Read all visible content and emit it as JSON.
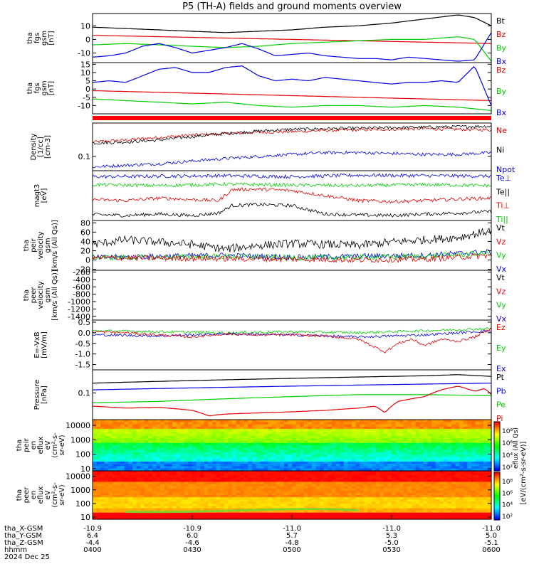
{
  "title": "P5 (TH-A) fields and ground moments overview",
  "colors": {
    "black": "#000000",
    "red": "#e00000",
    "green": "#00cc00",
    "blue": "#0000e0"
  },
  "chart_data": [
    {
      "type": "line",
      "ylabel": [
        "tha",
        "fgs",
        "gsm",
        "[nT]"
      ],
      "yticks": [
        "10",
        "0",
        "-10"
      ],
      "ylim": [
        -17,
        19
      ],
      "legend": [
        "Bt",
        "Bz",
        "By",
        "Bx"
      ],
      "series": [
        {
          "name": "Bt",
          "color": "black",
          "x": [
            0,
            10,
            20,
            30,
            40,
            50,
            60,
            70,
            80,
            90,
            100,
            110,
            115,
            120
          ],
          "values": [
            9,
            8,
            7,
            6,
            5,
            6,
            7,
            9,
            10,
            12,
            15,
            18,
            16,
            10
          ]
        },
        {
          "name": "Bz",
          "color": "red",
          "x": [
            0,
            20,
            40,
            60,
            80,
            100,
            120
          ],
          "values": [
            3,
            2,
            1,
            0,
            -1,
            -2,
            -3
          ]
        },
        {
          "name": "By",
          "color": "green",
          "x": [
            0,
            10,
            20,
            30,
            40,
            50,
            60,
            70,
            80,
            90,
            100,
            105,
            110,
            115,
            120
          ],
          "values": [
            -4,
            -3,
            -4,
            -5,
            -6,
            -5,
            -3,
            -2,
            -1,
            0,
            0,
            1,
            2,
            0,
            -16
          ]
        },
        {
          "name": "Bx",
          "color": "blue",
          "x": [
            0,
            5,
            10,
            15,
            20,
            25,
            30,
            35,
            40,
            45,
            50,
            55,
            60,
            65,
            70,
            75,
            80,
            85,
            90,
            95,
            100,
            105,
            110,
            115,
            120
          ],
          "values": [
            -13,
            -12,
            -10,
            -5,
            -3,
            -6,
            -10,
            -8,
            -6,
            -3,
            -7,
            -12,
            -11,
            -10,
            -12,
            -13,
            -14,
            -14,
            -15,
            -13,
            -14,
            -15,
            -16,
            -15,
            5
          ]
        }
      ]
    },
    {
      "type": "line",
      "ylabel": [
        "tha",
        "fgs",
        "gsm",
        "[nT]"
      ],
      "yticks": [
        "15",
        "10",
        "5",
        "0",
        "-5",
        "-10"
      ],
      "ylim": [
        -15,
        16
      ],
      "legend": [
        "Bz",
        "By",
        "Bx"
      ],
      "series": [
        {
          "name": "Bz",
          "color": "red",
          "x": [
            0,
            20,
            40,
            60,
            80,
            100,
            120
          ],
          "values": [
            -1,
            -2,
            -3,
            -4,
            -5,
            -6,
            -7
          ]
        },
        {
          "name": "By",
          "color": "green",
          "x": [
            0,
            10,
            20,
            30,
            40,
            50,
            60,
            70,
            80,
            90,
            100,
            110,
            120
          ],
          "values": [
            -6,
            -7,
            -8,
            -9,
            -8,
            -10,
            -11,
            -10,
            -10,
            -11,
            -10,
            -11,
            -13
          ]
        },
        {
          "name": "Bx",
          "color": "blue",
          "x": [
            0,
            5,
            10,
            15,
            20,
            25,
            30,
            35,
            40,
            45,
            50,
            55,
            60,
            65,
            70,
            75,
            80,
            85,
            90,
            95,
            100,
            105,
            110,
            115,
            120
          ],
          "values": [
            4,
            5,
            4,
            8,
            12,
            13,
            10,
            10,
            13,
            14,
            8,
            5,
            6,
            5,
            7,
            6,
            5,
            4,
            3,
            4,
            4,
            5,
            4,
            14,
            -10
          ]
        }
      ]
    },
    {
      "type": "line",
      "ylabel": [
        "Density",
        "[1/cc]",
        "[cm-3]"
      ],
      "ylog": true,
      "yticks": [
        "0.1"
      ],
      "ylim": [
        0.05,
        0.5
      ],
      "legend": [
        "Ne",
        "Ni",
        "Npot"
      ],
      "series": [
        {
          "name": "Ne",
          "color": "red",
          "x": [
            0,
            10,
            20,
            30,
            40,
            50,
            60,
            70,
            80,
            90,
            100,
            110,
            120
          ],
          "values": [
            0.2,
            0.22,
            0.25,
            0.28,
            0.3,
            0.32,
            0.33,
            0.35,
            0.36,
            0.37,
            0.38,
            0.37,
            0.36
          ]
        },
        {
          "name": "Ni",
          "color": "black",
          "x": [
            0,
            10,
            20,
            30,
            40,
            50,
            60,
            70,
            80,
            90,
            100,
            110,
            120
          ],
          "values": [
            0.19,
            0.2,
            0.22,
            0.26,
            0.3,
            0.34,
            0.37,
            0.38,
            0.39,
            0.4,
            0.41,
            0.42,
            0.43
          ]
        },
        {
          "name": "Npot",
          "color": "blue",
          "x": [
            0,
            10,
            20,
            30,
            40,
            50,
            60,
            70,
            80,
            90,
            100,
            110,
            120
          ],
          "values": [
            0.06,
            0.065,
            0.07,
            0.08,
            0.09,
            0.1,
            0.11,
            0.12,
            0.12,
            0.115,
            0.11,
            0.11,
            0.12
          ]
        }
      ]
    },
    {
      "type": "line",
      "ylabel": [
        "magt3",
        "[eV]"
      ],
      "yticks": [],
      "ylim": [
        0,
        10
      ],
      "legend": [
        "Te⊥",
        "Te||",
        "Ti⊥",
        "Ti||"
      ],
      "series": [
        {
          "name": "Te⊥",
          "color": "blue",
          "x": [
            0,
            20,
            40,
            60,
            80,
            100,
            120
          ],
          "values": [
            8.8,
            8.9,
            9.0,
            8.8,
            9.1,
            9.0,
            8.9
          ]
        },
        {
          "name": "Te||",
          "color": "black",
          "x": [
            0,
            10,
            20,
            30,
            38,
            42,
            50,
            60,
            70,
            80,
            90,
            100,
            110,
            120
          ],
          "values": [
            1.2,
            1.0,
            1.3,
            1.0,
            1.5,
            3.0,
            3.2,
            3.0,
            1.3,
            1.1,
            1.0,
            1.3,
            1.5,
            1.8
          ]
        },
        {
          "name": "Ti⊥",
          "color": "red",
          "x": [
            0,
            10,
            20,
            30,
            38,
            42,
            50,
            60,
            70,
            80,
            90,
            100,
            110,
            120
          ],
          "values": [
            4.2,
            4.0,
            4.5,
            4.2,
            4.0,
            6.2,
            6.3,
            6.0,
            5.0,
            4.0,
            3.8,
            4.0,
            4.3,
            4.5
          ]
        },
        {
          "name": "Ti||",
          "color": "green",
          "x": [
            0,
            20,
            40,
            60,
            80,
            100,
            120
          ],
          "values": [
            7.2,
            7.0,
            7.3,
            7.1,
            7.0,
            7.2,
            7.0
          ]
        }
      ]
    },
    {
      "type": "line",
      "ylabel": [
        "tha",
        "peir",
        "velocity",
        "gsm",
        "[km/s (All Qs)]"
      ],
      "yticks": [
        "80",
        "60",
        "40",
        "20",
        "0",
        "-20"
      ],
      "ylim": [
        -22,
        85
      ],
      "legend": [
        "Vt",
        "Vz",
        "Vy",
        "Vx"
      ],
      "series": [
        {
          "name": "Vt",
          "color": "black",
          "x": [
            0,
            10,
            20,
            30,
            40,
            50,
            60,
            70,
            80,
            90,
            100,
            110,
            120
          ],
          "values": [
            30,
            40,
            35,
            30,
            20,
            28,
            32,
            30,
            28,
            35,
            40,
            45,
            60
          ]
        },
        {
          "name": "Vx",
          "color": "blue",
          "x": [
            0,
            20,
            40,
            60,
            80,
            100,
            120
          ],
          "values": [
            5,
            8,
            10,
            6,
            8,
            10,
            18
          ]
        },
        {
          "name": "Vy",
          "color": "green",
          "x": [
            0,
            20,
            40,
            60,
            80,
            100,
            120
          ],
          "values": [
            5,
            6,
            8,
            5,
            6,
            8,
            15
          ]
        },
        {
          "name": "Vz",
          "color": "red",
          "x": [
            0,
            20,
            40,
            60,
            80,
            100,
            120
          ],
          "values": [
            5,
            4,
            3,
            2,
            0,
            2,
            10
          ]
        }
      ]
    },
    {
      "type": "line",
      "ylabel": [
        "tha",
        "peer",
        "velocity",
        "gsm",
        "[km/s (All Qs)]"
      ],
      "yticks": [
        "-200",
        "-400",
        "-600",
        "-800",
        "-1000",
        "-1200",
        "-1400"
      ],
      "ylim": [
        -1500,
        -150
      ],
      "legend": [
        "Vt",
        "Vz",
        "Vy",
        "Vx"
      ],
      "series": []
    },
    {
      "type": "line",
      "ylabel": [
        "E=-VxB",
        "[mV/m]"
      ],
      "yticks": [
        "0.5",
        "0.0",
        "-0.5",
        "-1.0",
        "-1.5"
      ],
      "ylim": [
        -1.75,
        0.6
      ],
      "legend": [
        "Ez",
        "Ey",
        "Ex"
      ],
      "series": [
        {
          "name": "Ey",
          "color": "green",
          "x": [
            0,
            20,
            40,
            60,
            80,
            100,
            120
          ],
          "values": [
            0.1,
            0.05,
            0.0,
            0.05,
            0.0,
            0.1,
            0.2
          ]
        },
        {
          "name": "Ex",
          "color": "blue",
          "x": [
            0,
            20,
            40,
            60,
            80,
            100,
            120
          ],
          "values": [
            -0.1,
            -0.15,
            -0.05,
            -0.1,
            -0.2,
            -0.1,
            0.1
          ]
        },
        {
          "name": "Ez",
          "color": "red",
          "x": [
            0,
            10,
            20,
            30,
            40,
            50,
            60,
            70,
            80,
            88,
            92,
            96,
            100,
            105,
            110,
            115,
            120
          ],
          "values": [
            0.05,
            0.0,
            -0.1,
            -0.2,
            -0.05,
            -0.1,
            -0.1,
            -0.15,
            -0.3,
            -0.9,
            -0.5,
            -0.3,
            -0.6,
            -0.3,
            -0.4,
            -0.2,
            0.2
          ]
        }
      ]
    },
    {
      "type": "line",
      "ylabel": [
        "Pressure",
        "[nPa]"
      ],
      "ylog": true,
      "yticks": [
        "0.1"
      ],
      "ylim": [
        0.02,
        0.4
      ],
      "legend": [
        "Pt",
        "Pb",
        "Pe",
        "Pi"
      ],
      "series": [
        {
          "name": "Pt",
          "color": "black",
          "x": [
            0,
            20,
            40,
            60,
            80,
            100,
            110,
            120
          ],
          "values": [
            0.18,
            0.2,
            0.22,
            0.24,
            0.26,
            0.28,
            0.3,
            0.27
          ]
        },
        {
          "name": "Pb",
          "color": "blue",
          "x": [
            0,
            20,
            40,
            60,
            80,
            100,
            120
          ],
          "values": [
            0.12,
            0.13,
            0.14,
            0.15,
            0.16,
            0.17,
            0.18
          ]
        },
        {
          "name": "Pe",
          "color": "green",
          "x": [
            0,
            20,
            40,
            60,
            80,
            100,
            120
          ],
          "values": [
            0.055,
            0.06,
            0.07,
            0.08,
            0.09,
            0.09,
            0.085
          ]
        },
        {
          "name": "Pi",
          "color": "red",
          "x": [
            0,
            10,
            20,
            30,
            35,
            40,
            50,
            60,
            70,
            80,
            85,
            88,
            92,
            100,
            105,
            110,
            115,
            118,
            120
          ],
          "values": [
            0.045,
            0.04,
            0.042,
            0.035,
            0.025,
            0.028,
            0.03,
            0.032,
            0.035,
            0.04,
            0.045,
            0.03,
            0.06,
            0.08,
            0.12,
            0.15,
            0.11,
            0.13,
            0.09
          ]
        }
      ]
    },
    {
      "type": "heatmap",
      "ylabel": [
        "tha",
        "peir",
        "en",
        "eflux",
        "eV",
        "(cm²-s-",
        "sr-eV)"
      ],
      "ylog": true,
      "yticks": [
        "10000",
        "1000",
        "100",
        "10"
      ],
      "ylim": [
        7,
        25000
      ]
    },
    {
      "type": "heatmap",
      "ylabel": [
        "tha",
        "peer",
        "en",
        "eflux",
        "eV",
        "(cm²-s-",
        "sr-eV)"
      ],
      "ylog": true,
      "yticks": [
        "10000",
        "1000",
        "100",
        "10"
      ],
      "ylim": [
        7,
        25000
      ]
    }
  ],
  "colorbar": {
    "label": "[eV/(cm²-s-sr-eV)]",
    "label_secondary": "eflux (All Qs)",
    "ticks_top": [
      "10⁸",
      "10⁶",
      "10⁴",
      "10²"
    ],
    "ticks_bottom": [
      "10⁸",
      "10⁶",
      "10⁴",
      "10²"
    ]
  },
  "x_axis": {
    "row_labels": [
      "tha_X-GSM",
      "tha_Y-GSM",
      "tha_Z-GSM",
      "hhmm",
      "2024 Dec 25"
    ],
    "ticks": [
      {
        "x": 0,
        "X": "-10.9",
        "Y": "6.4",
        "Z": "-4.4",
        "hhmm": "0400"
      },
      {
        "x": 30,
        "X": "-10.9",
        "Y": "6.0",
        "Z": "-4.6",
        "hhmm": "0430"
      },
      {
        "x": 60,
        "X": "-11.0",
        "Y": "5.7",
        "Z": "-4.8",
        "hhmm": "0500"
      },
      {
        "x": 90,
        "X": "-11.0",
        "Y": "5.3",
        "Z": "-5.0",
        "hhmm": "0530"
      },
      {
        "x": 120,
        "X": "-11.0",
        "Y": "5.0",
        "Z": "-5.1",
        "hhmm": "0600"
      }
    ]
  }
}
